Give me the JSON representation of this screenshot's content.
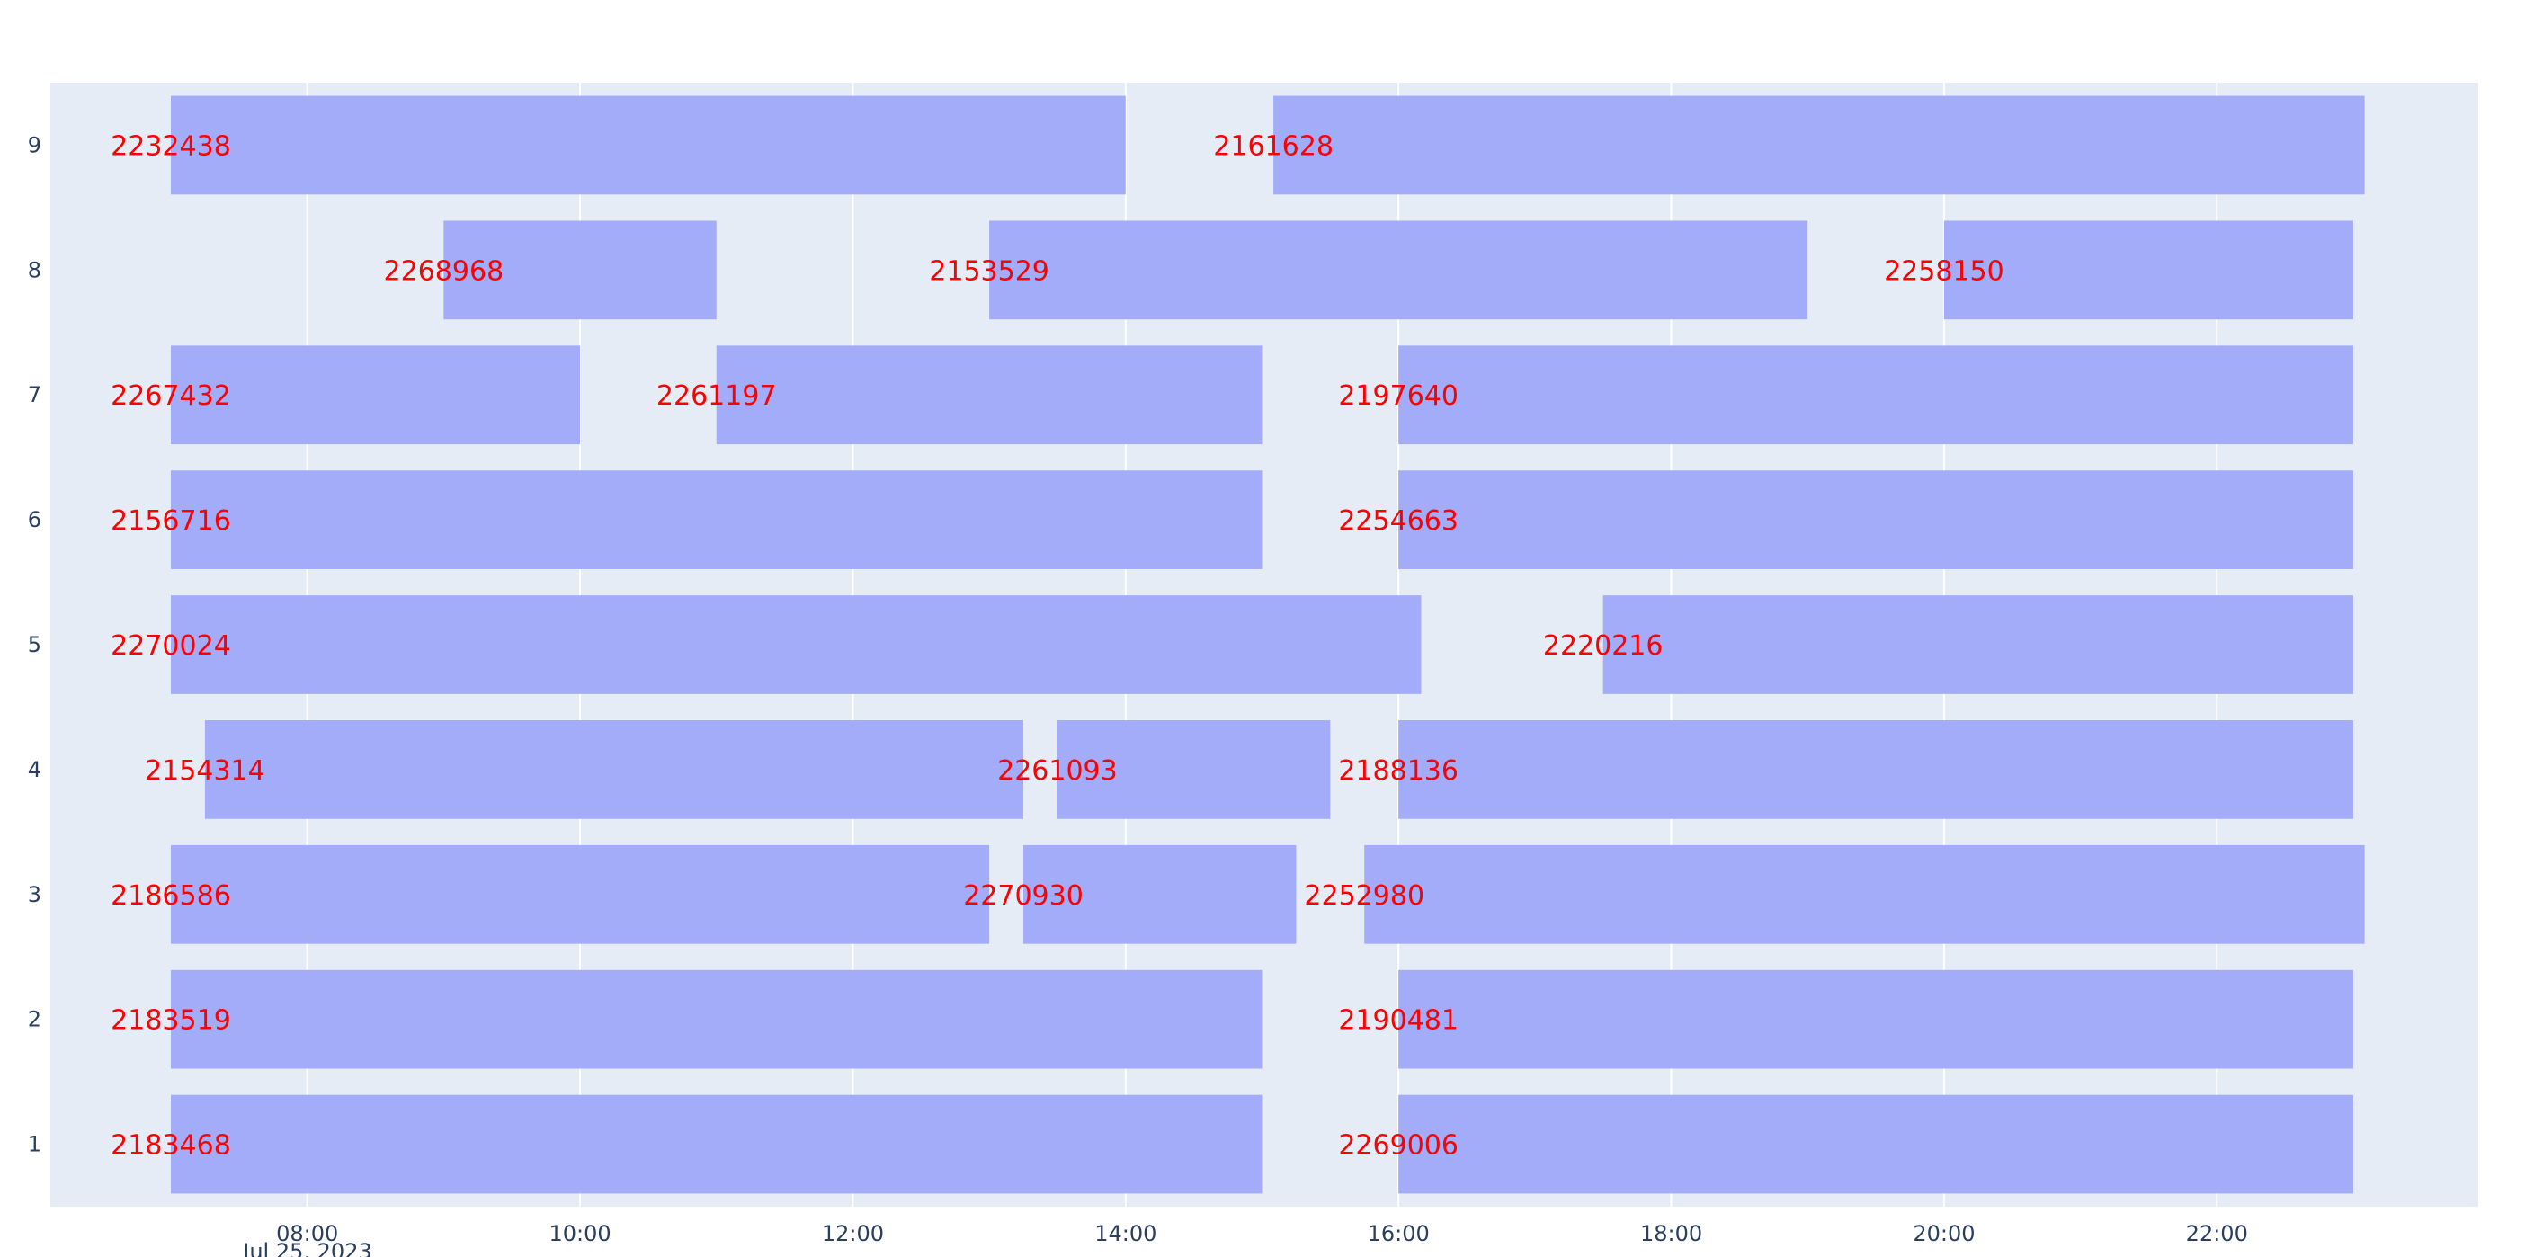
{
  "chart_data": {
    "type": "timeline",
    "title": "",
    "xlabel": "",
    "ylabel": "",
    "x_date_label": "Jul 25, 2023",
    "xlim": [
      "06:07",
      "23:55"
    ],
    "x_ticks": [
      "08:00",
      "10:00",
      "12:00",
      "14:00",
      "16:00",
      "18:00",
      "20:00",
      "22:00"
    ],
    "categories": [
      "1",
      "2",
      "3",
      "4",
      "5",
      "6",
      "7",
      "8",
      "9"
    ],
    "grid": true,
    "legend": "none",
    "colors": {
      "plot_bg": "#e5ecf6",
      "bar": "#a2acf9",
      "label": "#ff0000",
      "tick": "#2a3f5f",
      "grid": "#ffffff"
    },
    "tasks": [
      {
        "row": "9",
        "label": "2232438",
        "start": "07:00",
        "end": "14:00"
      },
      {
        "row": "9",
        "label": "2161628",
        "start": "15:05",
        "end": "23:05"
      },
      {
        "row": "8",
        "label": "2268968",
        "start": "09:00",
        "end": "11:00"
      },
      {
        "row": "8",
        "label": "2153529",
        "start": "13:00",
        "end": "19:00"
      },
      {
        "row": "8",
        "label": "2258150",
        "start": "20:00",
        "end": "23:00"
      },
      {
        "row": "7",
        "label": "2267432",
        "start": "07:00",
        "end": "10:00"
      },
      {
        "row": "7",
        "label": "2261197",
        "start": "11:00",
        "end": "15:00"
      },
      {
        "row": "7",
        "label": "2197640",
        "start": "16:00",
        "end": "23:00"
      },
      {
        "row": "6",
        "label": "2156716",
        "start": "07:00",
        "end": "15:00"
      },
      {
        "row": "6",
        "label": "2254663",
        "start": "16:00",
        "end": "23:00"
      },
      {
        "row": "5",
        "label": "2270024",
        "start": "07:00",
        "end": "16:10"
      },
      {
        "row": "5",
        "label": "2220216",
        "start": "17:30",
        "end": "23:00"
      },
      {
        "row": "4",
        "label": "2154314",
        "start": "07:15",
        "end": "13:15"
      },
      {
        "row": "4",
        "label": "2261093",
        "start": "13:30",
        "end": "15:30"
      },
      {
        "row": "4",
        "label": "2188136",
        "start": "16:00",
        "end": "23:00"
      },
      {
        "row": "3",
        "label": "2186586",
        "start": "07:00",
        "end": "13:00"
      },
      {
        "row": "3",
        "label": "2270930",
        "start": "13:15",
        "end": "15:15"
      },
      {
        "row": "3",
        "label": "2252980",
        "start": "15:45",
        "end": "23:05"
      },
      {
        "row": "2",
        "label": "2183519",
        "start": "07:00",
        "end": "15:00"
      },
      {
        "row": "2",
        "label": "2190481",
        "start": "16:00",
        "end": "23:00"
      },
      {
        "row": "1",
        "label": "2183468",
        "start": "07:00",
        "end": "15:00"
      },
      {
        "row": "1",
        "label": "2269006",
        "start": "16:00",
        "end": "23:00"
      }
    ]
  }
}
